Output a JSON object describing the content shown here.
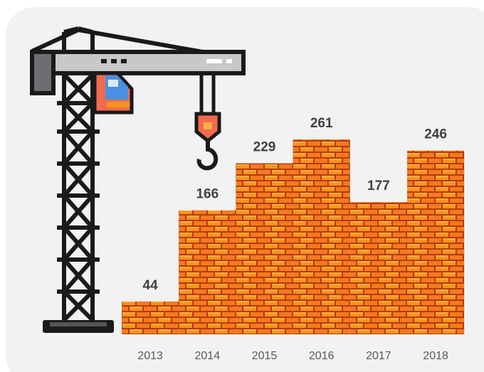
{
  "chart_data": {
    "type": "bar",
    "categories": [
      "2013",
      "2014",
      "2015",
      "2016",
      "2017",
      "2018"
    ],
    "values": [
      44,
      166,
      229,
      261,
      177,
      246
    ]
  }
}
